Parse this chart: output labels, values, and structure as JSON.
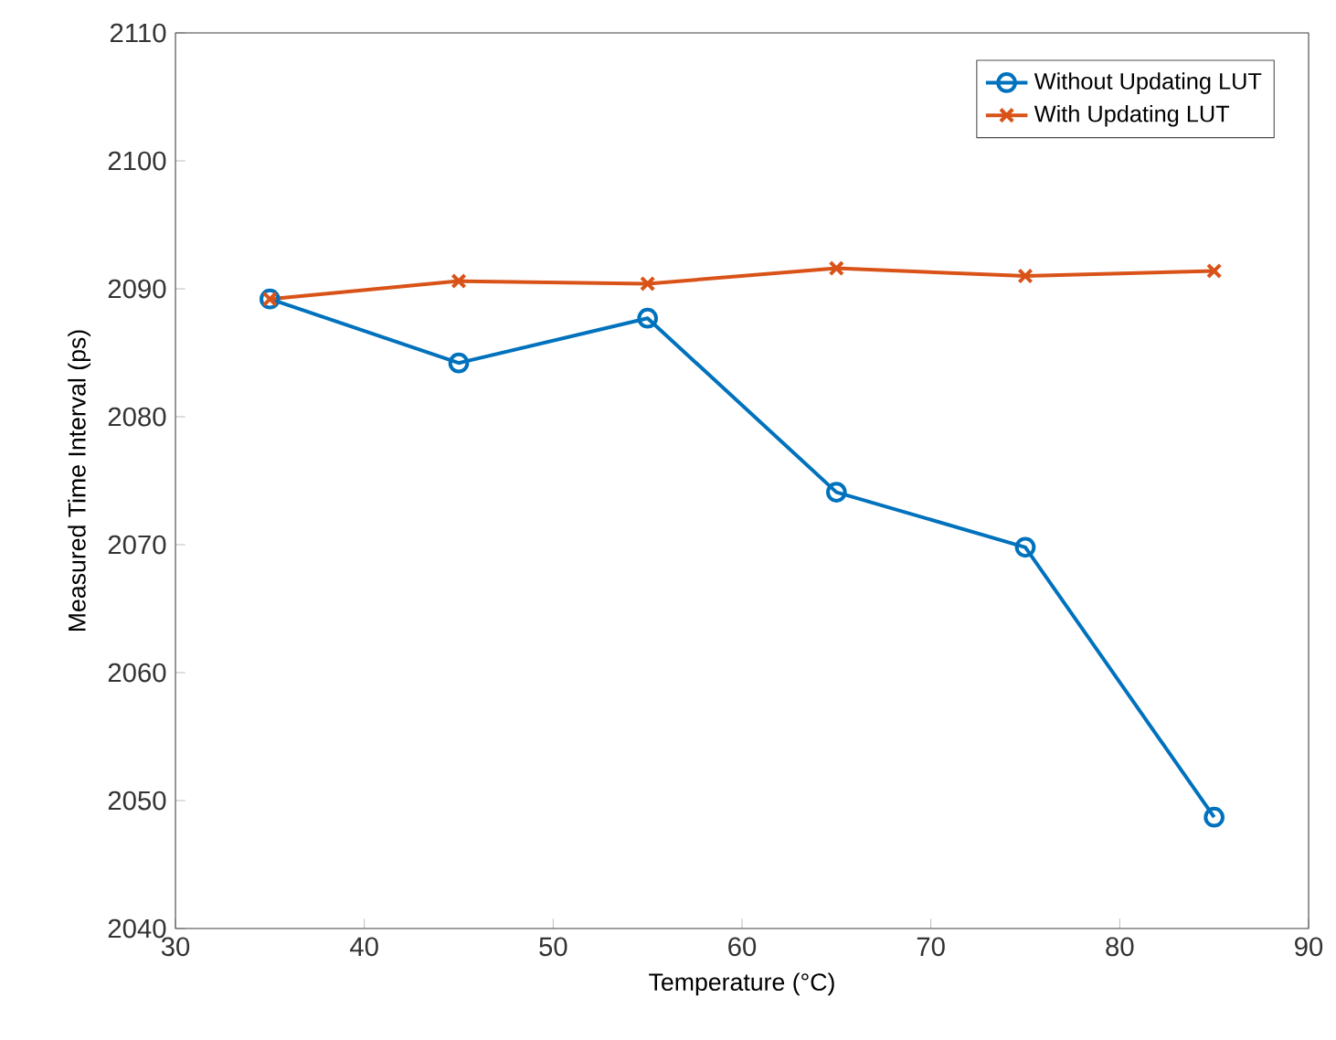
{
  "chart_data": {
    "type": "line",
    "xlabel": "Temperature (°C)",
    "ylabel": "Measured Time Interval (ps)",
    "x": [
      35,
      45,
      55,
      65,
      75,
      85
    ],
    "series": [
      {
        "name": "Without Updating LUT",
        "color": "#0072bd",
        "marker": "circle",
        "values": [
          2089.2,
          2084.2,
          2087.7,
          2074.1,
          2069.8,
          2048.7
        ]
      },
      {
        "name": "With Updating LUT",
        "color": "#d95319",
        "marker": "cross",
        "values": [
          2089.2,
          2090.6,
          2090.4,
          2091.6,
          2091.0,
          2091.4
        ]
      }
    ],
    "xlim": [
      30,
      90
    ],
    "xticks": [
      30,
      40,
      50,
      60,
      70,
      80,
      90
    ],
    "ylim": [
      2040,
      2110
    ],
    "yticks": [
      2040,
      2050,
      2060,
      2070,
      2080,
      2090,
      2100,
      2110
    ],
    "grid": false,
    "legend": "top right",
    "line_style": "solid"
  }
}
